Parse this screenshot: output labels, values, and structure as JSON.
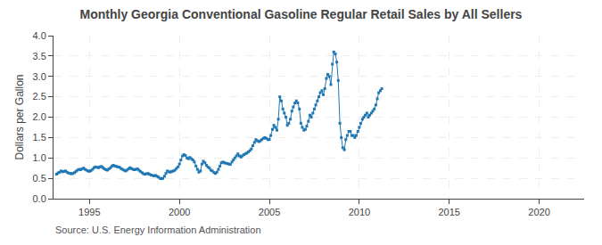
{
  "chart_data": {
    "type": "line",
    "title": "Monthly Georgia Conventional Gasoline Regular Retail Sales by All Sellers",
    "ylabel": "Dollars per Gallon",
    "annotations": [
      "Source: U.S. Energy Information Administration"
    ],
    "marker": "square",
    "line_style": "solid",
    "grid": true,
    "xlim": [
      1993.0,
      2022.5
    ],
    "ylim": [
      0.0,
      4.0
    ],
    "xticks": [
      1995,
      2000,
      2005,
      2010,
      2015,
      2020
    ],
    "yticks": [
      {
        "value": 0.0,
        "label": "0.0"
      },
      0.5,
      {
        "value": 1.0,
        "label": "1.0"
      },
      1.5,
      {
        "value": 2.0,
        "label": "2.0"
      },
      2.5,
      {
        "value": 3.0,
        "label": "3.0"
      },
      3.5,
      {
        "value": 4.0,
        "label": "4.0"
      }
    ],
    "x": [
      1993.17,
      1993.25,
      1993.33,
      1993.42,
      1993.5,
      1993.58,
      1993.67,
      1993.75,
      1993.83,
      1993.92,
      1994.0,
      1994.08,
      1994.17,
      1994.25,
      1994.33,
      1994.42,
      1994.5,
      1994.58,
      1994.67,
      1994.75,
      1994.83,
      1994.92,
      1995.0,
      1995.08,
      1995.17,
      1995.25,
      1995.33,
      1995.42,
      1995.5,
      1995.58,
      1995.67,
      1995.75,
      1995.83,
      1995.92,
      1996.0,
      1996.08,
      1996.17,
      1996.25,
      1996.33,
      1996.42,
      1996.5,
      1996.58,
      1996.67,
      1996.75,
      1996.83,
      1996.92,
      1997.0,
      1997.08,
      1997.17,
      1997.25,
      1997.33,
      1997.42,
      1997.5,
      1997.58,
      1997.67,
      1997.75,
      1997.83,
      1997.92,
      1998.0,
      1998.08,
      1998.17,
      1998.25,
      1998.33,
      1998.42,
      1998.5,
      1998.58,
      1998.67,
      1998.75,
      1998.83,
      1998.92,
      1999.0,
      1999.08,
      1999.17,
      1999.25,
      1999.33,
      1999.42,
      1999.5,
      1999.58,
      1999.67,
      1999.75,
      1999.83,
      1999.92,
      2000.0,
      2000.08,
      2000.17,
      2000.25,
      2000.33,
      2000.42,
      2000.5,
      2000.58,
      2000.67,
      2000.75,
      2000.83,
      2000.92,
      2001.0,
      2001.08,
      2001.17,
      2001.25,
      2001.33,
      2001.42,
      2001.5,
      2001.58,
      2001.67,
      2001.75,
      2001.83,
      2001.92,
      2002.0,
      2002.08,
      2002.17,
      2002.25,
      2002.33,
      2002.42,
      2002.5,
      2002.58,
      2002.67,
      2002.75,
      2002.83,
      2002.92,
      2003.0,
      2003.08,
      2003.17,
      2003.25,
      2003.33,
      2003.42,
      2003.5,
      2003.58,
      2003.67,
      2003.75,
      2003.83,
      2003.92,
      2004.0,
      2004.08,
      2004.17,
      2004.25,
      2004.33,
      2004.42,
      2004.5,
      2004.58,
      2004.67,
      2004.75,
      2004.83,
      2004.92,
      2005.0,
      2005.08,
      2005.17,
      2005.25,
      2005.33,
      2005.42,
      2005.5,
      2005.58,
      2005.67,
      2005.75,
      2005.83,
      2005.92,
      2006.0,
      2006.08,
      2006.17,
      2006.25,
      2006.33,
      2006.42,
      2006.5,
      2006.58,
      2006.67,
      2006.75,
      2006.83,
      2006.92,
      2007.0,
      2007.08,
      2007.17,
      2007.25,
      2007.33,
      2007.42,
      2007.5,
      2007.58,
      2007.67,
      2007.75,
      2007.83,
      2007.92,
      2008.0,
      2008.08,
      2008.17,
      2008.25,
      2008.33,
      2008.42,
      2008.5,
      2008.58,
      2008.67,
      2008.75,
      2008.83,
      2008.92,
      2009.0,
      2009.08,
      2009.17,
      2009.25,
      2009.33,
      2009.42,
      2009.5,
      2009.58,
      2009.67,
      2009.75,
      2009.83,
      2009.92,
      2010.0,
      2010.08,
      2010.17,
      2010.25,
      2010.33,
      2010.42,
      2010.5,
      2010.58,
      2010.67,
      2010.75,
      2010.83,
      2010.92,
      2011.0,
      2011.08,
      2011.17,
      2011.25
    ],
    "values": [
      0.6,
      0.63,
      0.65,
      0.68,
      0.66,
      0.67,
      0.68,
      0.65,
      0.63,
      0.62,
      0.61,
      0.62,
      0.64,
      0.67,
      0.7,
      0.72,
      0.71,
      0.73,
      0.75,
      0.72,
      0.7,
      0.68,
      0.67,
      0.69,
      0.72,
      0.76,
      0.78,
      0.77,
      0.76,
      0.78,
      0.79,
      0.76,
      0.73,
      0.71,
      0.7,
      0.73,
      0.76,
      0.8,
      0.82,
      0.8,
      0.79,
      0.78,
      0.77,
      0.74,
      0.72,
      0.7,
      0.68,
      0.7,
      0.73,
      0.76,
      0.74,
      0.72,
      0.71,
      0.72,
      0.73,
      0.7,
      0.67,
      0.64,
      0.61,
      0.6,
      0.61,
      0.62,
      0.6,
      0.58,
      0.57,
      0.56,
      0.57,
      0.55,
      0.53,
      0.5,
      0.49,
      0.5,
      0.55,
      0.62,
      0.68,
      0.66,
      0.65,
      0.67,
      0.68,
      0.7,
      0.74,
      0.78,
      0.85,
      0.95,
      1.05,
      1.08,
      1.06,
      1.0,
      0.98,
      1.01,
      0.98,
      0.95,
      0.9,
      0.8,
      0.72,
      0.65,
      0.68,
      0.85,
      0.92,
      0.88,
      0.82,
      0.78,
      0.75,
      0.7,
      0.68,
      0.64,
      0.62,
      0.65,
      0.72,
      0.8,
      0.88,
      0.9,
      0.88,
      0.87,
      0.86,
      0.85,
      0.84,
      0.9,
      0.95,
      1.0,
      1.05,
      1.1,
      1.05,
      1.02,
      1.05,
      1.08,
      1.1,
      1.12,
      1.15,
      1.18,
      1.22,
      1.3,
      1.38,
      1.45,
      1.42,
      1.4,
      1.42,
      1.45,
      1.48,
      1.5,
      1.48,
      1.45,
      1.45,
      1.55,
      1.7,
      1.8,
      1.75,
      1.68,
      1.95,
      2.5,
      2.4,
      2.2,
      2.1,
      2.0,
      1.8,
      1.85,
      1.95,
      2.15,
      2.25,
      2.35,
      2.4,
      2.35,
      2.2,
      1.85,
      1.75,
      1.68,
      1.7,
      1.78,
      1.9,
      2.05,
      2.0,
      2.1,
      2.2,
      2.3,
      2.4,
      2.5,
      2.6,
      2.65,
      2.55,
      2.7,
      2.95,
      3.05,
      3.0,
      2.8,
      3.3,
      3.6,
      3.55,
      3.35,
      2.9,
      1.85,
      1.5,
      1.25,
      1.2,
      1.45,
      1.55,
      1.65,
      1.65,
      1.55,
      1.55,
      1.5,
      1.55,
      1.65,
      1.75,
      1.85,
      1.95,
      2.0,
      2.05,
      2.1,
      2.0,
      2.05,
      2.1,
      2.15,
      2.2,
      2.3,
      2.45,
      2.6,
      2.65,
      2.7
    ]
  }
}
